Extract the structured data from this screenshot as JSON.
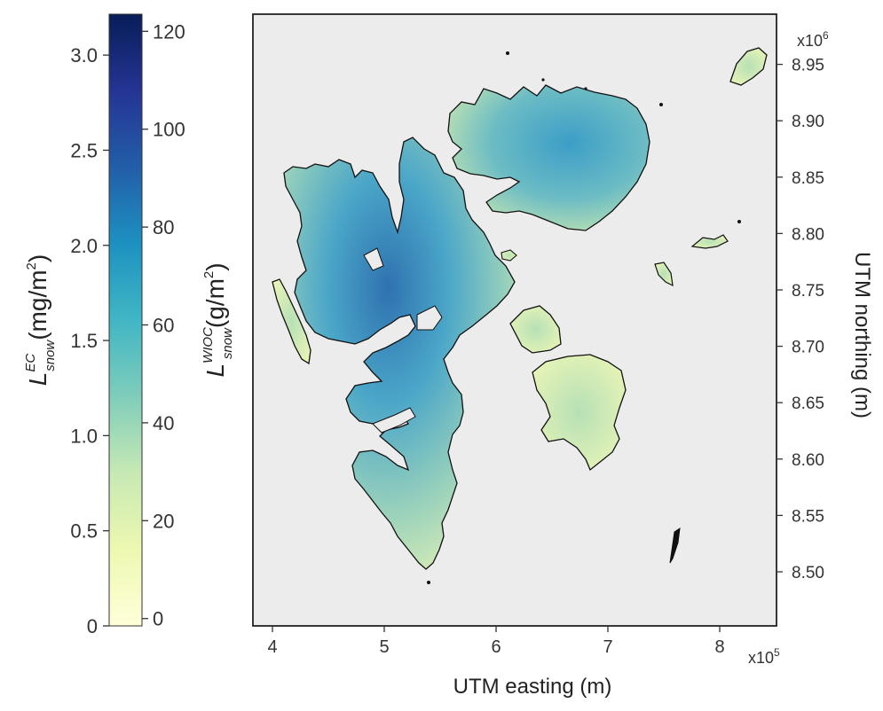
{
  "colorbar": {
    "left_axis": {
      "ticks": [
        "0",
        "0.5",
        "1.0",
        "1.5",
        "2.0",
        "2.5",
        "3.0"
      ],
      "label_main": "L",
      "label_sup": "EC",
      "label_sub": "snow",
      "label_unit": "(mg/m",
      "label_unit_sup": "2",
      "label_close": ")"
    },
    "right_axis": {
      "ticks": [
        "0",
        "20",
        "40",
        "60",
        "80",
        "100",
        "120"
      ],
      "label_main": "L",
      "label_sup": "WIOC",
      "label_sub": "snow",
      "label_unit": "(g/m",
      "label_unit_sup": "2",
      "label_close": ")"
    },
    "colors": [
      "#ffffd9",
      "#edf8b1",
      "#c7e9b4",
      "#7fcdbb",
      "#41b6c4",
      "#1d91c0",
      "#225ea8",
      "#253494",
      "#081d58"
    ]
  },
  "map": {
    "x_axis": {
      "ticks": [
        "4",
        "5",
        "6",
        "7",
        "8"
      ],
      "multiplier_base": "x10",
      "multiplier_exp": "5",
      "label": "UTM easting (m)"
    },
    "y_axis": {
      "ticks": [
        "8.50",
        "8.55",
        "8.60",
        "8.65",
        "8.70",
        "8.75",
        "8.80",
        "8.85",
        "8.90",
        "8.95"
      ],
      "multiplier_base": "x10",
      "multiplier_exp": "6",
      "label": "UTM northing (m)"
    },
    "background": "#ebeceb"
  }
}
